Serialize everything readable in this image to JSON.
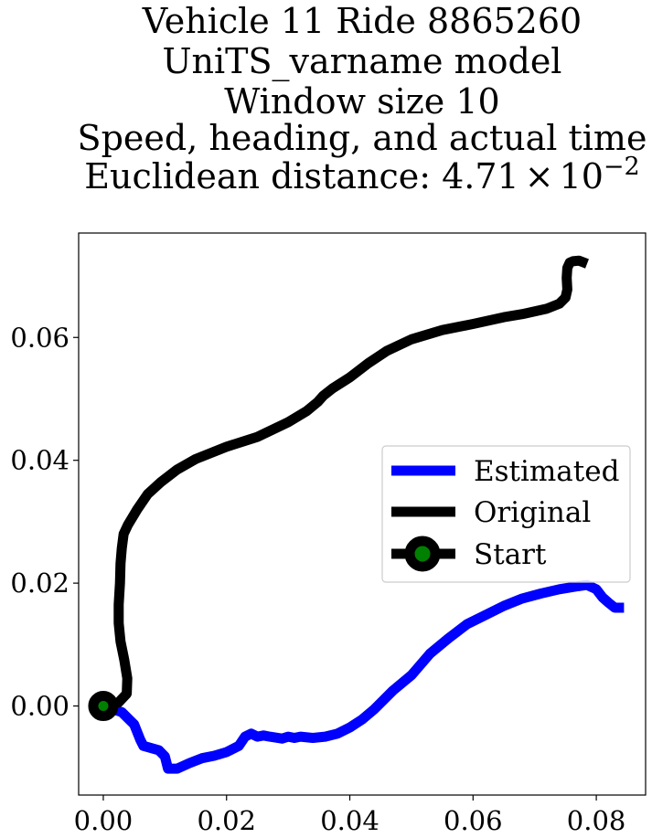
{
  "chart_data": {
    "type": "line",
    "title_lines": [
      "Vehicle 11 Ride 8865260",
      "UniTS_varname model",
      "Window size 10",
      "Speed, heading, and actual time"
    ],
    "title_distance_prefix": "Euclidean distance: ",
    "title_distance_mantissa": "4.71",
    "title_distance_times": "×",
    "title_distance_base": "10",
    "title_distance_exponent": "−2",
    "xlabel": "",
    "ylabel": "",
    "xlim": [
      -0.004,
      0.088
    ],
    "ylim": [
      -0.0145,
      0.077
    ],
    "xticks": [
      0.0,
      0.02,
      0.04,
      0.06,
      0.08
    ],
    "xtick_labels": [
      "0.00",
      "0.02",
      "0.04",
      "0.06",
      "0.08"
    ],
    "yticks": [
      0.0,
      0.02,
      0.04,
      0.06
    ],
    "ytick_labels": [
      "0.00",
      "0.02",
      "0.04",
      "0.06"
    ],
    "grid": false,
    "legend_position": "center-right",
    "series": [
      {
        "name": "Estimated",
        "color": "#0000ff",
        "x": [
          0.0,
          0.003,
          0.005,
          0.006,
          0.0065,
          0.009,
          0.01,
          0.0105,
          0.012,
          0.014,
          0.016,
          0.018,
          0.02,
          0.022,
          0.023,
          0.024,
          0.025,
          0.026,
          0.027,
          0.029,
          0.03,
          0.031,
          0.032,
          0.034,
          0.036,
          0.038,
          0.04,
          0.042,
          0.044,
          0.047,
          0.05,
          0.053,
          0.056,
          0.059,
          0.062,
          0.065,
          0.068,
          0.071,
          0.074,
          0.077,
          0.0785,
          0.08,
          0.081,
          0.082,
          0.083,
          0.0845
        ],
        "y": [
          0.0,
          -0.001,
          -0.003,
          -0.0055,
          -0.0065,
          -0.0072,
          -0.0082,
          -0.0102,
          -0.0102,
          -0.0093,
          -0.0085,
          -0.0081,
          -0.0075,
          -0.0065,
          -0.005,
          -0.0045,
          -0.005,
          -0.0048,
          -0.005,
          -0.0053,
          -0.005,
          -0.0052,
          -0.005,
          -0.0052,
          -0.005,
          -0.0045,
          -0.0035,
          -0.0022,
          -0.0005,
          0.0025,
          0.005,
          0.0085,
          0.011,
          0.0133,
          0.0148,
          0.0163,
          0.0175,
          0.0183,
          0.019,
          0.0195,
          0.0197,
          0.019,
          0.0177,
          0.0168,
          0.016,
          0.016
        ]
      },
      {
        "name": "Original",
        "color": "#000000",
        "x": [
          0.0,
          0.0025,
          0.0038,
          0.0039,
          0.0034,
          0.0028,
          0.0025,
          0.0025,
          0.0027,
          0.0028,
          0.003,
          0.0033,
          0.004,
          0.0055,
          0.0072,
          0.0094,
          0.012,
          0.015,
          0.02,
          0.025,
          0.03,
          0.033,
          0.0348,
          0.0357,
          0.0372,
          0.04,
          0.043,
          0.046,
          0.05,
          0.055,
          0.06,
          0.065,
          0.068,
          0.072,
          0.074,
          0.075,
          0.0753,
          0.0752,
          0.0753,
          0.0757,
          0.0762,
          0.0772,
          0.0785
        ],
        "y": [
          0.0,
          0.0006,
          0.002,
          0.0045,
          0.0075,
          0.0105,
          0.0135,
          0.0165,
          0.02,
          0.0232,
          0.0257,
          0.028,
          0.0295,
          0.032,
          0.0345,
          0.0365,
          0.0385,
          0.0402,
          0.0422,
          0.0438,
          0.0462,
          0.048,
          0.0495,
          0.0505,
          0.0517,
          0.0535,
          0.0558,
          0.0578,
          0.0597,
          0.0612,
          0.0622,
          0.0633,
          0.0638,
          0.0647,
          0.0655,
          0.0665,
          0.0678,
          0.0697,
          0.0713,
          0.0722,
          0.0724,
          0.0725,
          0.072
        ]
      }
    ],
    "start_point": {
      "name": "Start",
      "x": 0.0,
      "y": 0.0,
      "outer_color": "#000000",
      "inner_color": "#008000"
    }
  }
}
